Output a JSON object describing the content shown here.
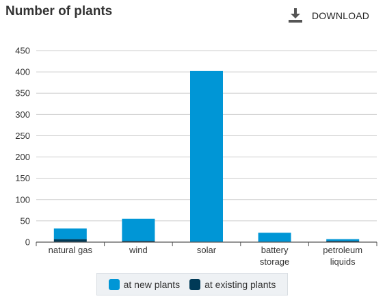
{
  "header": {
    "title": "Number of plants",
    "download_label": "DOWNLOAD",
    "download_icon": "download-icon"
  },
  "colors": {
    "new": "#0096d6",
    "existing": "#003a57",
    "grid": "#cccccc",
    "axis": "#555555"
  },
  "chart_data": {
    "type": "bar",
    "stacked": true,
    "title": "Number of plants",
    "categories": [
      "natural gas",
      "wind",
      "solar",
      "battery storage",
      "petroleum liquids"
    ],
    "category_lines": [
      [
        "natural gas"
      ],
      [
        "wind"
      ],
      [
        "solar"
      ],
      [
        "battery",
        "storage"
      ],
      [
        "petroleum",
        "liquids"
      ]
    ],
    "series": [
      {
        "name": "at existing plants",
        "values": [
          7,
          3,
          0,
          0,
          3
        ]
      },
      {
        "name": "at new plants",
        "values": [
          25,
          52,
          402,
          22,
          4
        ]
      }
    ],
    "ylim": [
      0,
      450
    ],
    "yticks": [
      0,
      50,
      100,
      150,
      200,
      250,
      300,
      350,
      400,
      450
    ],
    "grid": true,
    "legend_position": "bottom"
  },
  "legend": {
    "items": [
      {
        "label": "at new plants"
      },
      {
        "label": "at existing plants"
      }
    ]
  }
}
